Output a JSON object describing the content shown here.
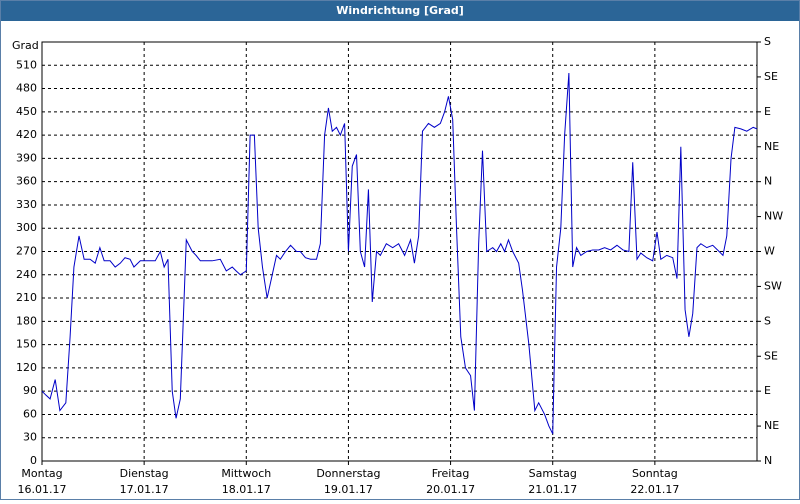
{
  "chart_data": {
    "type": "line",
    "title": "Windrichtung [Grad]",
    "y_label": "Grad",
    "xlim": [
      0,
      168
    ],
    "xticks": [
      {
        "value": 0,
        "label": "Montag",
        "date": "16.01.17"
      },
      {
        "value": 24,
        "label": "Dienstag",
        "date": "17.01.17"
      },
      {
        "value": 48,
        "label": "Mittwoch",
        "date": "18.01.17"
      },
      {
        "value": 72,
        "label": "Donnerstag",
        "date": "19.01.17"
      },
      {
        "value": 96,
        "label": "Freitag",
        "date": "20.01.17"
      },
      {
        "value": 120,
        "label": "Samstag",
        "date": "21.01.17"
      },
      {
        "value": 144,
        "label": "Sonntag",
        "date": "22.01.17"
      }
    ],
    "ylim": [
      0,
      540
    ],
    "yticks": [
      0,
      30,
      60,
      90,
      120,
      150,
      180,
      210,
      240,
      270,
      300,
      330,
      360,
      390,
      420,
      450,
      480,
      510
    ],
    "y2lim": [
      0,
      540
    ],
    "y2ticks": [
      {
        "value": 0,
        "label": "N"
      },
      {
        "value": 45,
        "label": "NE"
      },
      {
        "value": 90,
        "label": "E"
      },
      {
        "value": 135,
        "label": "SE"
      },
      {
        "value": 180,
        "label": "S"
      },
      {
        "value": 225,
        "label": "SW"
      },
      {
        "value": 270,
        "label": "W"
      },
      {
        "value": 315,
        "label": "NW"
      },
      {
        "value": 360,
        "label": "N"
      },
      {
        "value": 405,
        "label": "NE"
      },
      {
        "value": 450,
        "label": "E"
      },
      {
        "value": 495,
        "label": "SE"
      },
      {
        "value": 540,
        "label": "S"
      }
    ],
    "grid": true,
    "x": [
      0,
      0.9,
      1.9,
      3.1,
      4.2,
      5.6,
      6.6,
      7.5,
      8.7,
      9.9,
      11.3,
      12.5,
      13.6,
      14.6,
      16,
      17.2,
      18.4,
      19.5,
      20.7,
      21.6,
      23.1,
      24,
      25.4,
      26.6,
      27.8,
      28.7,
      29.6,
      30.6,
      31.5,
      32.5,
      33.9,
      35.3,
      36.2,
      37.2,
      38.6,
      40,
      41.9,
      43.3,
      44.7,
      45.6,
      46.6,
      48,
      48.9,
      49.9,
      50.8,
      51.8,
      52.9,
      54.1,
      55.1,
      56,
      57.2,
      58.4,
      59.8,
      60.7,
      61.9,
      63.1,
      64.5,
      65.4,
      66.4,
      67.3,
      68.2,
      69.2,
      70.1,
      71.1,
      72,
      72.9,
      73.9,
      74.8,
      75.8,
      76.7,
      77.6,
      78.6,
      79.5,
      80.9,
      82.4,
      83.8,
      85.2,
      86.6,
      87.5,
      88.5,
      89.4,
      90.8,
      92.2,
      93.6,
      94.6,
      95.5,
      96.5,
      97.4,
      98.4,
      99.5,
      100.7,
      101.6,
      102.6,
      103.5,
      104.5,
      105.9,
      106.8,
      107.8,
      108.7,
      109.6,
      110.6,
      112,
      112.9,
      114.4,
      115.8,
      116.7,
      118.1,
      119.1,
      120,
      120.9,
      121.9,
      122.8,
      123.8,
      124.7,
      125.6,
      126.6,
      128,
      129.4,
      130.8,
      132.2,
      133.6,
      135.1,
      136.5,
      137.9,
      138.8,
      139.8,
      140.7,
      142.1,
      143.5,
      144.5,
      145.4,
      146.8,
      148.2,
      149.2,
      150.1,
      151.1,
      152,
      152.9,
      153.9,
      154.8,
      156.2,
      157.6,
      159.1,
      160,
      160.9,
      161.9,
      162.8,
      164.2,
      165.6,
      167.1,
      168
    ],
    "series": [
      {
        "color": "#0000c8",
        "values": [
          90,
          85,
          80,
          105,
          65,
          75,
          160,
          250,
          290,
          260,
          260,
          255,
          275,
          258,
          258,
          250,
          255,
          262,
          260,
          250,
          258,
          258,
          258,
          258,
          270,
          250,
          260,
          90,
          55,
          80,
          285,
          270,
          265,
          258,
          258,
          258,
          260,
          245,
          250,
          245,
          240,
          245,
          420,
          420,
          300,
          250,
          210,
          240,
          265,
          260,
          270,
          278,
          270,
          270,
          262,
          260,
          260,
          280,
          420,
          455,
          425,
          430,
          420,
          435,
          270,
          380,
          395,
          270,
          250,
          350,
          205,
          270,
          265,
          280,
          275,
          280,
          265,
          285,
          255,
          290,
          425,
          435,
          430,
          435,
          450,
          470,
          440,
          300,
          160,
          120,
          110,
          65,
          280,
          400,
          270,
          275,
          270,
          280,
          270,
          285,
          270,
          255,
          220,
          150,
          65,
          75,
          60,
          45,
          35,
          250,
          300,
          420,
          500,
          250,
          275,
          265,
          270,
          272,
          272,
          275,
          272,
          278,
          272,
          270,
          385,
          260,
          268,
          262,
          258,
          295,
          260,
          265,
          262,
          235,
          405,
          195,
          160,
          190,
          275,
          280,
          275,
          278,
          270,
          265,
          290,
          390,
          430,
          428,
          425,
          430,
          428
        ]
      }
    ]
  }
}
